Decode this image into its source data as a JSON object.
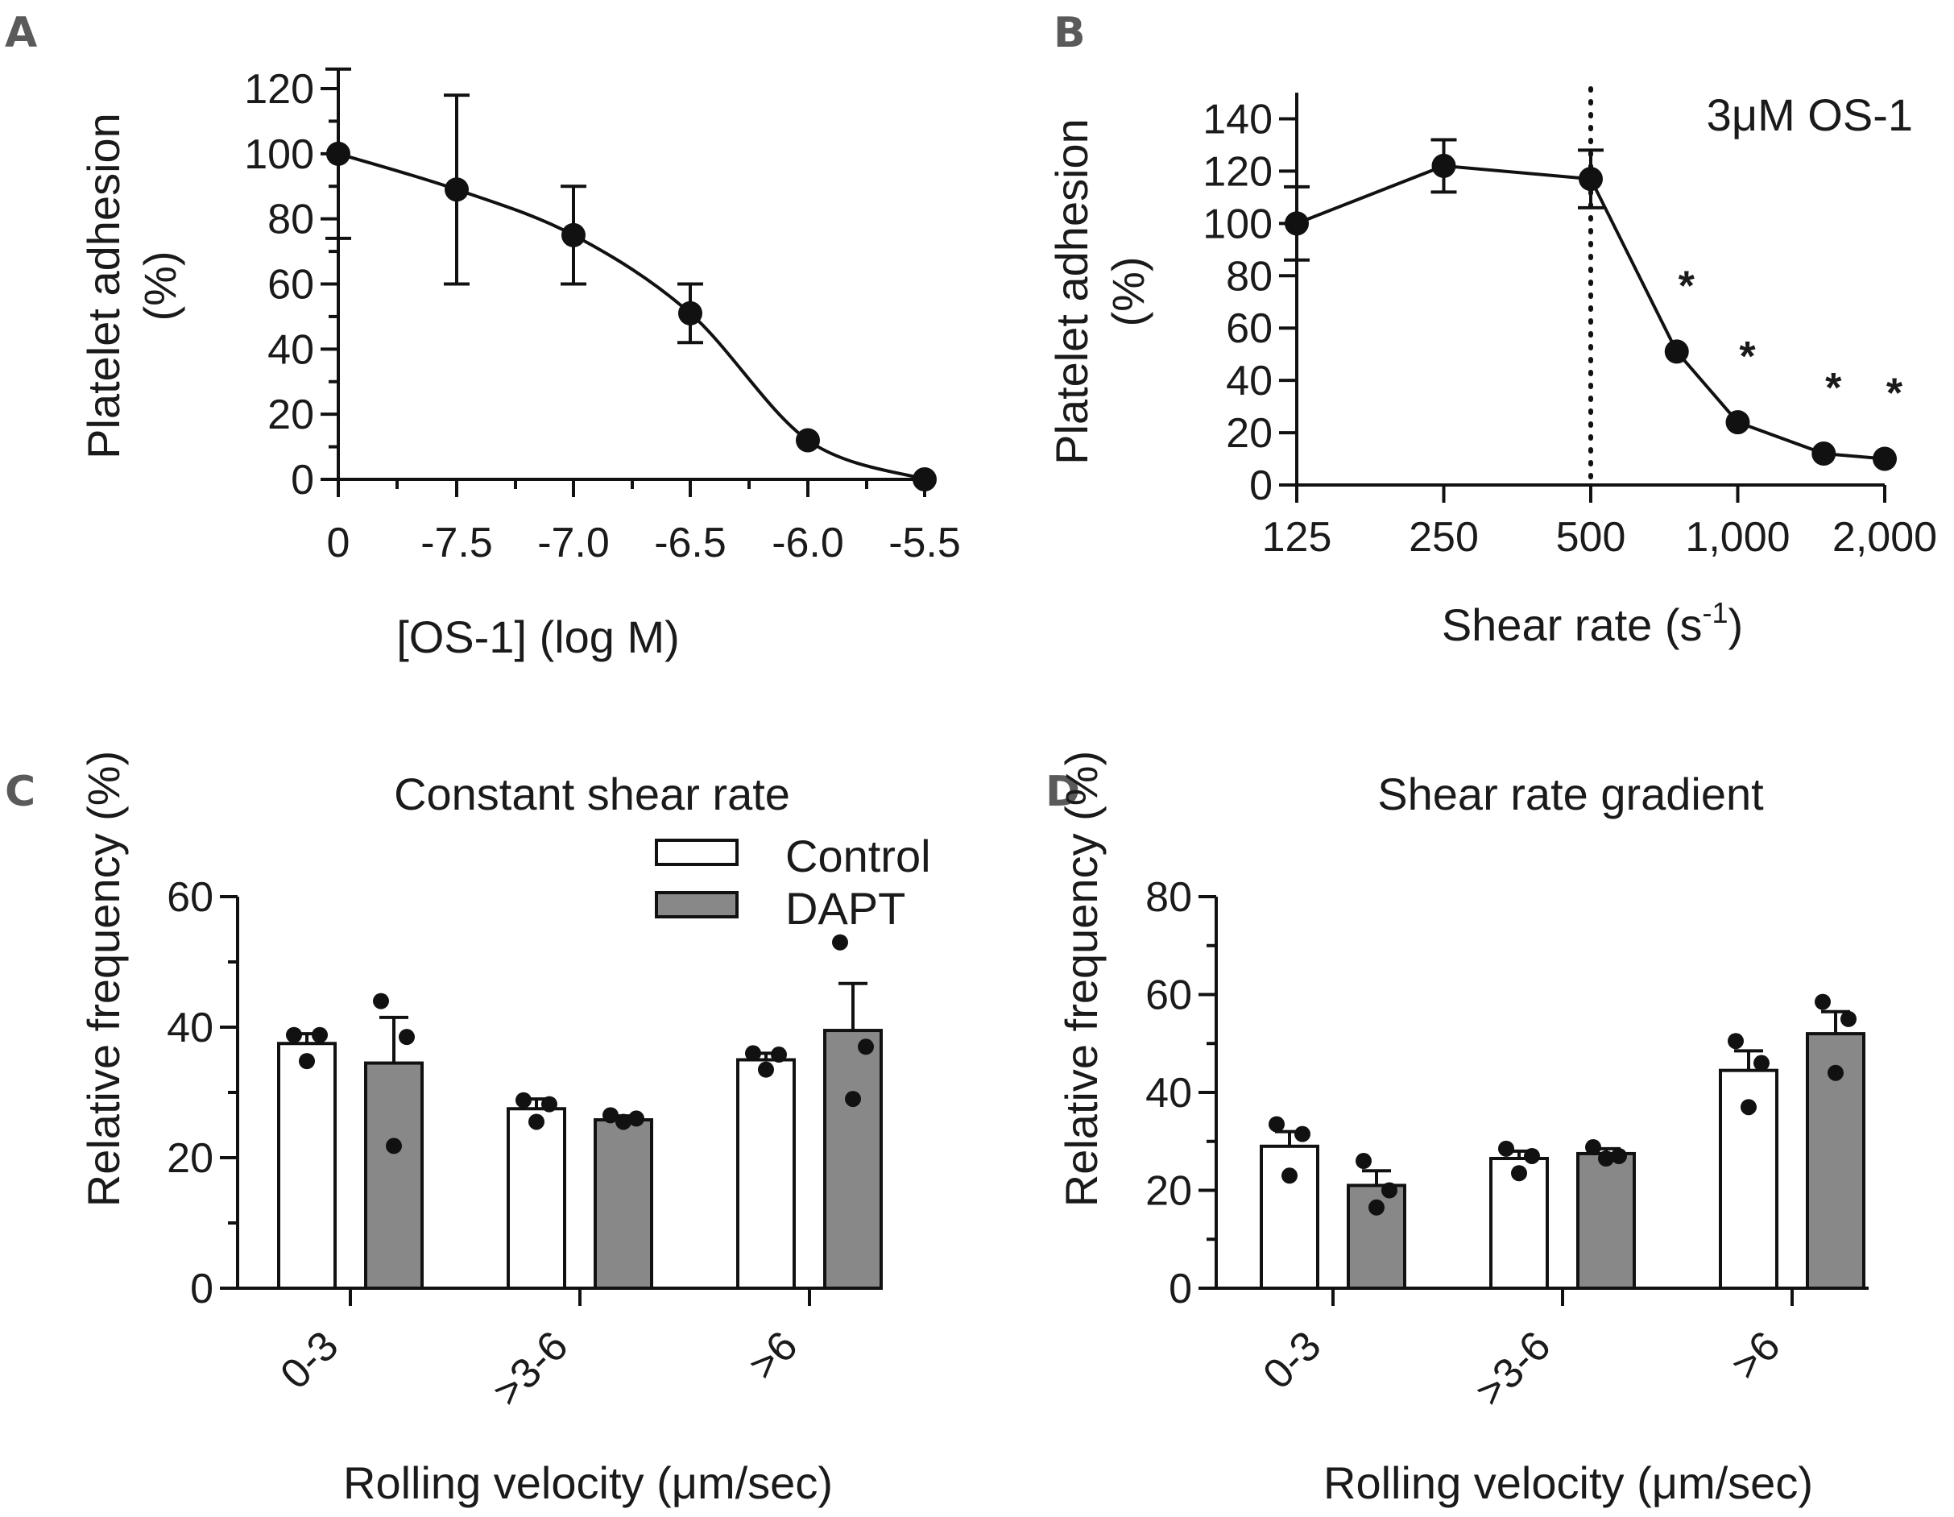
{
  "chart_data": [
    {
      "panel": "A",
      "type": "line",
      "title": "",
      "xlabel": "[OS-1] (log M)",
      "ylabel": "Platelet adhesion (%)",
      "ylabel_lines": [
        "Platelet adhesion",
        "(%)"
      ],
      "x_tick_labels": [
        "0",
        "-7.5",
        "-7.0",
        "-6.5",
        "-6.0",
        "-5.5"
      ],
      "y_ticks": [
        0,
        20,
        40,
        60,
        80,
        100,
        120
      ],
      "ylim": [
        0,
        120
      ],
      "points": [
        {
          "x": "0",
          "y": 100,
          "err": 26
        },
        {
          "x": "-7.5",
          "y": 89,
          "err": 29
        },
        {
          "x": "-7.0",
          "y": 75,
          "err": 15
        },
        {
          "x": "-6.5",
          "y": 51,
          "err": 9
        },
        {
          "x": "-6.0",
          "y": 12,
          "err": 0
        },
        {
          "x": "-5.5",
          "y": 0,
          "err": 0
        }
      ],
      "fit_curve": "sigmoidal dose-response"
    },
    {
      "panel": "B",
      "type": "line",
      "title": "",
      "annotation": "3μM OS-1",
      "xlabel": "Shear rate (s",
      "xlabel_sup": "-1",
      "xlabel_end": ")",
      "ylabel": "Platelet adhesion (%)",
      "ylabel_lines": [
        "Platelet adhesion",
        "(%)"
      ],
      "x_scale": "log",
      "x_tick_labels": [
        "125",
        "250",
        "500",
        "1,000",
        "2,000"
      ],
      "x_tick_values": [
        125,
        250,
        500,
        1000,
        2000
      ],
      "y_ticks": [
        0,
        20,
        40,
        60,
        80,
        100,
        120,
        140
      ],
      "ylim": [
        0,
        150
      ],
      "reference_line_x": 500,
      "points": [
        {
          "x": 125,
          "y": 100,
          "err": 14,
          "sig": ""
        },
        {
          "x": 250,
          "y": 122,
          "err": 10,
          "sig": ""
        },
        {
          "x": 500,
          "y": 117,
          "err": 11,
          "sig": ""
        },
        {
          "x": 750,
          "y": 51,
          "err": 0,
          "sig": "*"
        },
        {
          "x": 1000,
          "y": 24,
          "err": 0,
          "sig": "*"
        },
        {
          "x": 1500,
          "y": 12,
          "err": 0,
          "sig": "*"
        },
        {
          "x": 2000,
          "y": 10,
          "err": 0,
          "sig": "*"
        }
      ]
    },
    {
      "panel": "C",
      "type": "bar",
      "title": "Constant shear rate",
      "xlabel": "Rolling velocity (μm/sec)",
      "ylabel": "Relative frequency (%)",
      "categories": [
        "0-3",
        ">3-6",
        ">6"
      ],
      "y_ticks": [
        0,
        20,
        40,
        60
      ],
      "ylim": [
        0,
        60
      ],
      "series": [
        {
          "name": "Control",
          "color": "#ffffff",
          "values": [
            37.5,
            27.5,
            35.0
          ],
          "errors": [
            1.5,
            1.5,
            1.0
          ],
          "replicates": [
            [
              38.8,
              38.8,
              34.8
            ],
            [
              28.8,
              28.2,
              25.5
            ],
            [
              36.0,
              35.8,
              33.5
            ]
          ]
        },
        {
          "name": "DAPT",
          "color": "#888888",
          "values": [
            34.5,
            25.8,
            39.5
          ],
          "errors": [
            7.0,
            0.6,
            7.2
          ],
          "replicates": [
            [
              44.0,
              38.5,
              21.8
            ],
            [
              26.5,
              26.0,
              25.5
            ],
            [
              53.0,
              37.0,
              29.0
            ]
          ]
        }
      ]
    },
    {
      "panel": "D",
      "type": "bar",
      "title": "Shear rate gradient",
      "xlabel": "Rolling velocity (μm/sec)",
      "ylabel": "Relative frequency (%)",
      "categories": [
        "0-3",
        ">3-6",
        ">6"
      ],
      "y_ticks": [
        0,
        20,
        40,
        60,
        80
      ],
      "ylim": [
        0,
        80
      ],
      "series": [
        {
          "name": "Control",
          "color": "#ffffff",
          "values": [
            29.0,
            26.5,
            44.5
          ],
          "errors": [
            3.0,
            1.5,
            4.0
          ],
          "replicates": [
            [
              33.5,
              31.5,
              23.0
            ],
            [
              28.5,
              27.0,
              23.5
            ],
            [
              50.5,
              46.0,
              37.0
            ]
          ]
        },
        {
          "name": "DAPT",
          "color": "#888888",
          "values": [
            21.0,
            27.5,
            52.0
          ],
          "errors": [
            3.0,
            1.0,
            4.5
          ],
          "replicates": [
            [
              26.0,
              20.0,
              16.5
            ],
            [
              28.8,
              27.0,
              26.5
            ],
            [
              58.5,
              55.0,
              44.0
            ]
          ]
        }
      ]
    }
  ],
  "panels": {
    "a": {
      "letter": "A"
    },
    "b": {
      "letter": "B"
    },
    "c": {
      "letter": "C"
    },
    "d": {
      "letter": "D"
    }
  },
  "legend": {
    "control_label": "Control",
    "dapt_label": "DAPT"
  }
}
